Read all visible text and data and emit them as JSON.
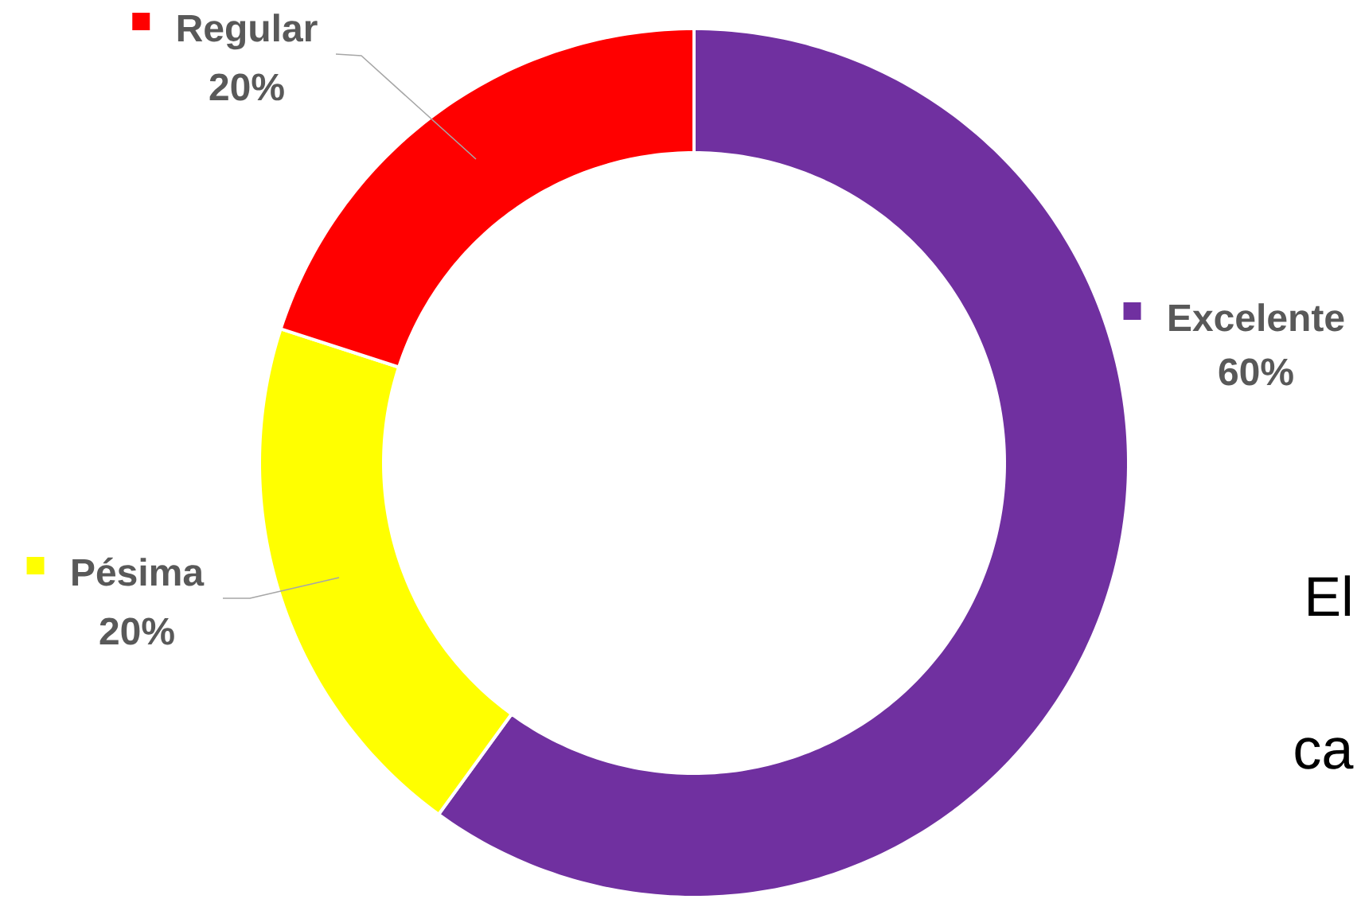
{
  "chart_data": {
    "type": "donut",
    "categories": [
      "Excelente",
      "Pésima",
      "Regular"
    ],
    "values": [
      60,
      20,
      20
    ],
    "colors": [
      "#7030a0",
      "#ffff00",
      "#ff0000"
    ],
    "value_labels": [
      "60%",
      "20%",
      "20%"
    ],
    "legend": "top",
    "annotations": [
      "El",
      "ca"
    ]
  }
}
